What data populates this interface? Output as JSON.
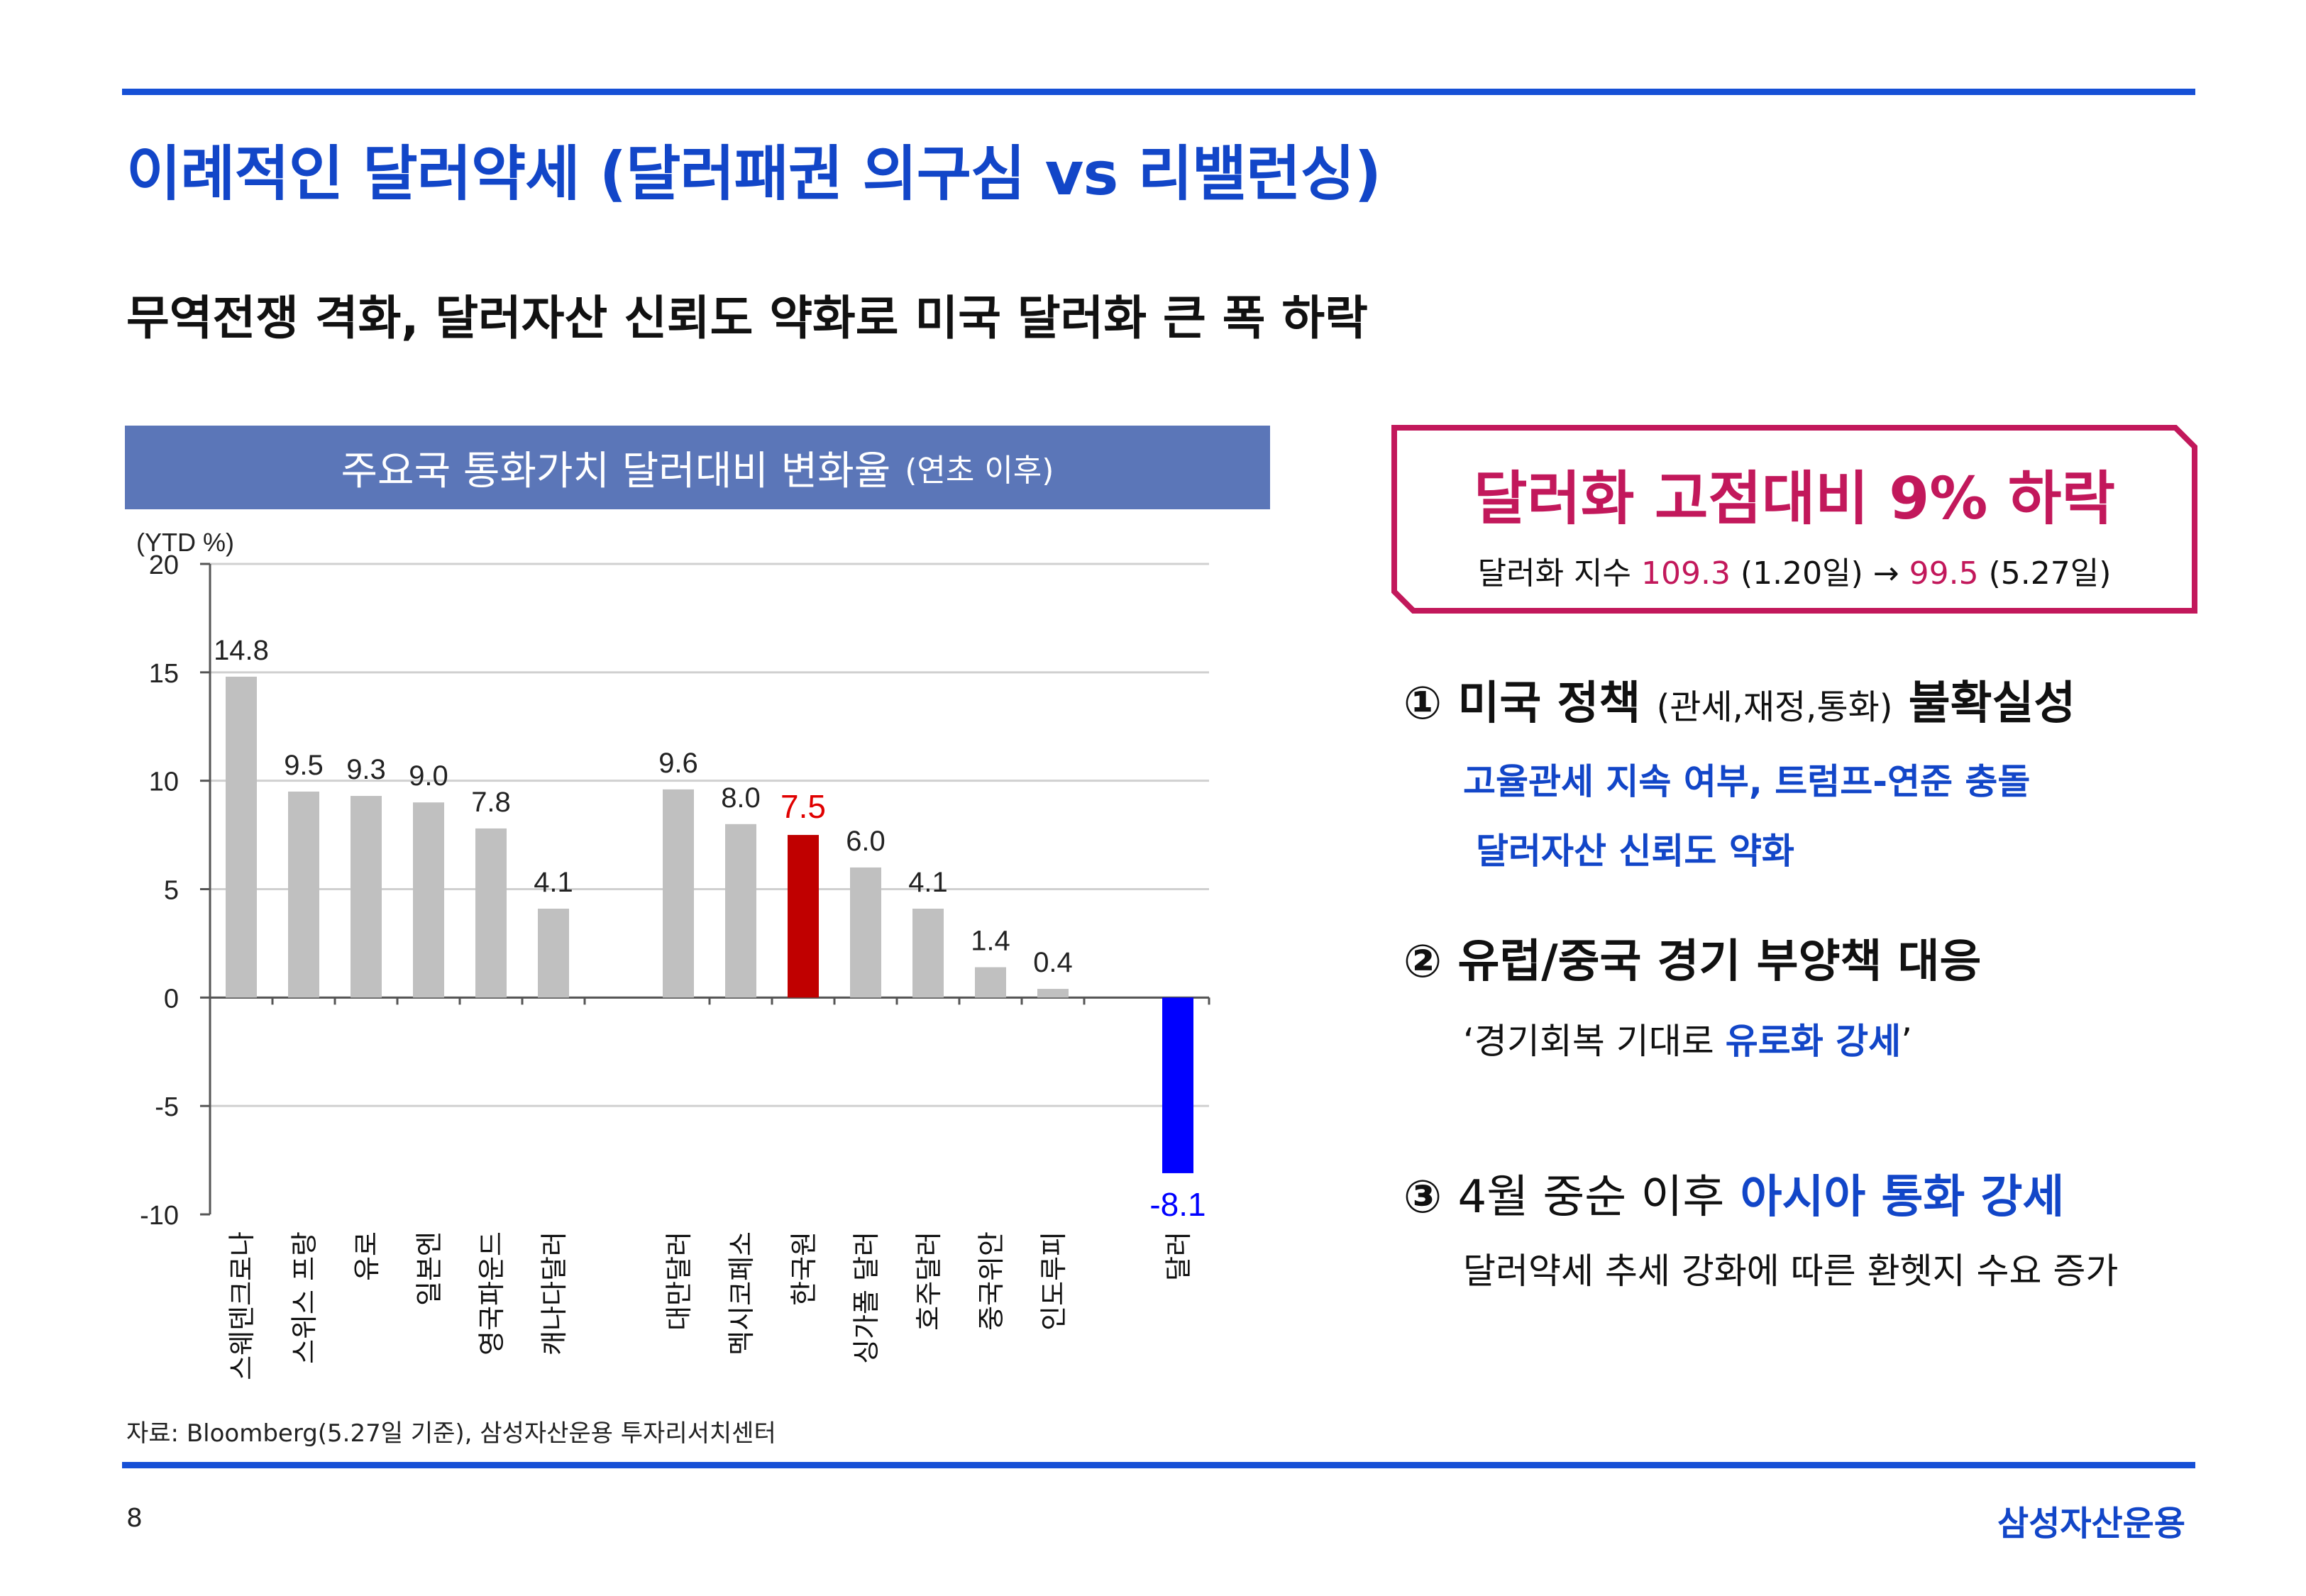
{
  "title": "이례적인 달러약세 (달러패권 의구심 vs 리밸런싱)",
  "subtitle": "무역전쟁 격화, 달러자산 신뢰도 약화로 미국 달러화 큰 폭 하락",
  "chart_header": {
    "main": "주요국 통화가치 달러대비 변화율",
    "paren": "(연초 이후)"
  },
  "chart_data": {
    "type": "bar",
    "title": "주요국 통화가치 달러대비 변화율 (연초 이후)",
    "unit_label": "(YTD %)",
    "ylim": [
      -10,
      20
    ],
    "yticks": [
      20,
      15,
      10,
      5,
      0,
      -5,
      -10
    ],
    "grid": true,
    "categories": [
      "스웨덴크로나",
      "스위스 프랑",
      "유로",
      "일본엔",
      "영국파운드",
      "캐나다달러",
      "대만달러",
      "멕시코페소",
      "한국원",
      "싱가폴 달러",
      "호주달러",
      "중국위안",
      "인도루피",
      "달러"
    ],
    "values": [
      14.8,
      9.5,
      9.3,
      9.0,
      7.8,
      4.1,
      9.6,
      8.0,
      7.5,
      6.0,
      4.1,
      1.4,
      0.4,
      -8.1
    ],
    "value_labels": [
      "14.8",
      "9.5",
      "9.3",
      "9.0",
      "7.8",
      "4.1",
      "9.6",
      "8.0",
      "7.5",
      "6.0",
      "4.1",
      "1.4",
      "0.4",
      "-8.1"
    ],
    "colors": {
      "default": "#c0c0c0",
      "한국원": "#c00000",
      "달러": "#0000ff"
    }
  },
  "source_note": "자료: Bloomberg(5.27일 기준), 삼성자산운용 투자리서치센터",
  "page_number": "8",
  "brand": "삼성자산운용",
  "highlight": {
    "headline": "달러화 고점대비 9% 하락",
    "index_prefix": "달러화 지수",
    "peak_value": "109.3",
    "peak_date": "(1.20일)",
    "arrow": "→",
    "current_value": "99.5",
    "current_date": "(5.27일)"
  },
  "points": [
    {
      "number": "①",
      "title_main": "미국 정책",
      "title_paren": "(관세,재정,통화)",
      "title_tail": "불확실성",
      "details": [
        "고율관세 지속 여부, 트럼프-연준 충돌",
        "달러자산 신뢰도 약화"
      ]
    },
    {
      "number": "②",
      "title": "유럽/중국 경기 부양책 대응",
      "detail_open": "‘경기회복 기대로",
      "detail_emph": "유로화 강세",
      "detail_close": "’"
    },
    {
      "number": "③",
      "title_main": "4월 중순 이후",
      "title_emph": "아시아 통화 강세",
      "detail": "달러약세 추세 강화에 따른 환헷지 수요 증가"
    }
  ]
}
